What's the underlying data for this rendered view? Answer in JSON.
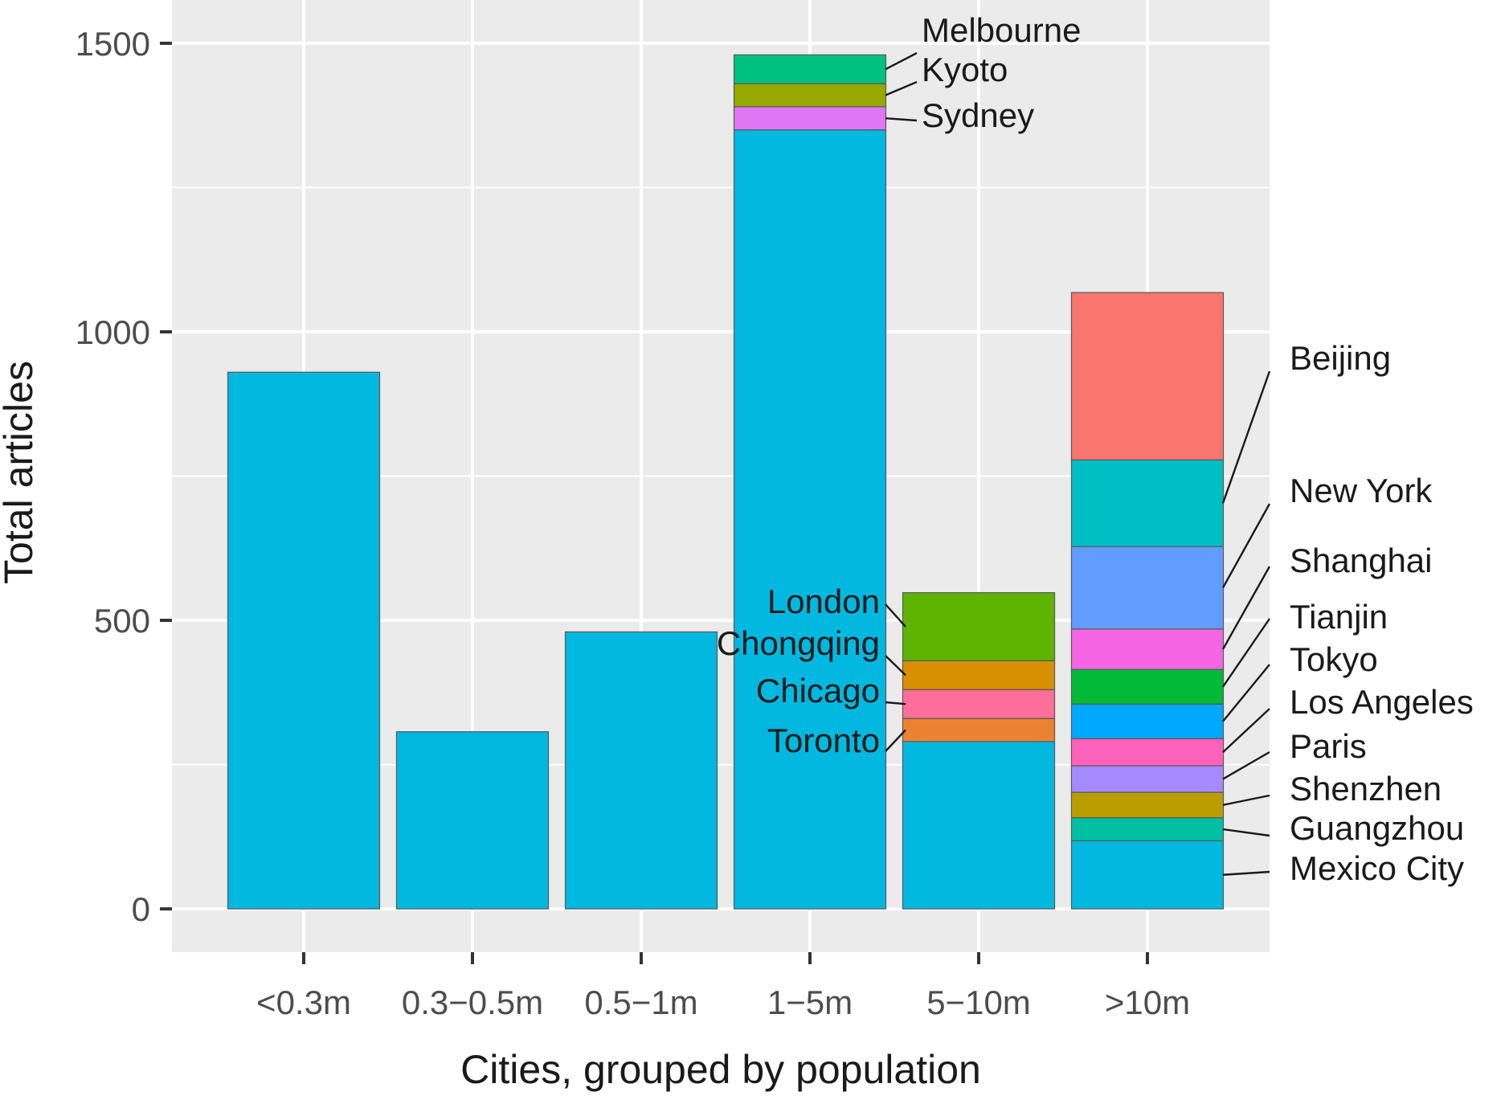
{
  "chart_data": {
    "type": "bar",
    "stacked": true,
    "xlabel": "Cities, grouped by population",
    "ylabel": "Total articles",
    "ylim": [
      -75,
      1575
    ],
    "yticks": [
      0,
      500,
      1000,
      1500
    ],
    "grid": true,
    "legend": "none",
    "categories": [
      "<0.3m",
      "0.3−0.5m",
      "0.5−1m",
      "1−5m",
      "5−10m",
      ">10m"
    ],
    "other_color": "#00B8E0",
    "stacks": [
      {
        "category": "<0.3m",
        "segments": [
          {
            "city": "",
            "value": 930,
            "color": "#00B8E0"
          }
        ]
      },
      {
        "category": "0.3−0.5m",
        "segments": [
          {
            "city": "",
            "value": 307,
            "color": "#00B8E0"
          }
        ]
      },
      {
        "category": "0.5−1m",
        "segments": [
          {
            "city": "",
            "value": 480,
            "color": "#00B8E0"
          }
        ]
      },
      {
        "category": "1−5m",
        "segments": [
          {
            "city": "",
            "value": 1350,
            "color": "#00B8E0"
          },
          {
            "city": "Sydney",
            "value": 40,
            "color": "#E076F3"
          },
          {
            "city": "Kyoto",
            "value": 40,
            "color": "#96A900"
          },
          {
            "city": "Melbourne",
            "value": 50,
            "color": "#00C17F"
          }
        ]
      },
      {
        "category": "5−10m",
        "segments": [
          {
            "city": "",
            "value": 290,
            "color": "#00B8E0"
          },
          {
            "city": "Toronto",
            "value": 40,
            "color": "#EA8331"
          },
          {
            "city": "Chicago",
            "value": 50,
            "color": "#FE6E9A"
          },
          {
            "city": "Chongqing",
            "value": 50,
            "color": "#D89000"
          },
          {
            "city": "London",
            "value": 118,
            "color": "#5EB400"
          }
        ]
      },
      {
        "category": ">10m",
        "segments": [
          {
            "city": "Mexico City",
            "value": 118,
            "color": "#00B8E0"
          },
          {
            "city": "Guangzhou",
            "value": 40,
            "color": "#00C0A3"
          },
          {
            "city": "Shenzhen",
            "value": 44,
            "color": "#BB9D00"
          },
          {
            "city": "Paris",
            "value": 46,
            "color": "#A58AFF"
          },
          {
            "city": "Los Angeles",
            "value": 47,
            "color": "#FF62BC"
          },
          {
            "city": "Tokyo",
            "value": 60,
            "color": "#00A9FF"
          },
          {
            "city": "Tianjin",
            "value": 60,
            "color": "#00BA38"
          },
          {
            "city": "Shanghai",
            "value": 70,
            "color": "#F564E3"
          },
          {
            "city": "New York",
            "value": 143,
            "color": "#619CFF"
          },
          {
            "city": "Beijing",
            "value": 150,
            "color": "#00BFC4"
          },
          {
            "city": "",
            "value": 290,
            "color": "#F8766D"
          }
        ]
      }
    ]
  }
}
